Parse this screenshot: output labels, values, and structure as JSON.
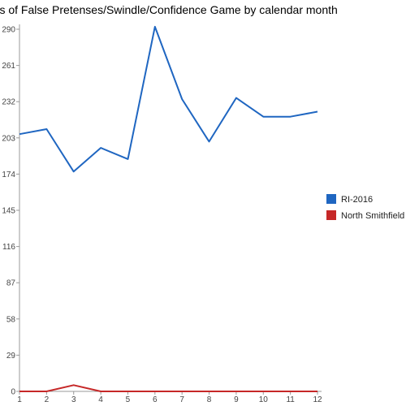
{
  "chart_data": {
    "type": "line",
    "title": "unts of False Pretenses/Swindle/Confidence Game by calendar month",
    "xlabel": "",
    "ylabel": "",
    "x": [
      1,
      2,
      3,
      4,
      5,
      6,
      7,
      8,
      9,
      10,
      11,
      12
    ],
    "ylim": [
      0,
      290
    ],
    "yticks": [
      0,
      29,
      58,
      87,
      116,
      145,
      174,
      203,
      232,
      261,
      290
    ],
    "grid": false,
    "legend": "right",
    "series": [
      {
        "name": "RI-2016",
        "color": "#1f66c1",
        "values": [
          206,
          210,
          176,
          195,
          186,
          292,
          234,
          200,
          235,
          220,
          220,
          224
        ]
      },
      {
        "name": "North Smithfield",
        "color": "#c62828",
        "values": [
          0,
          0,
          5,
          0,
          0,
          0,
          0,
          0,
          0,
          0,
          0,
          0
        ]
      }
    ]
  }
}
